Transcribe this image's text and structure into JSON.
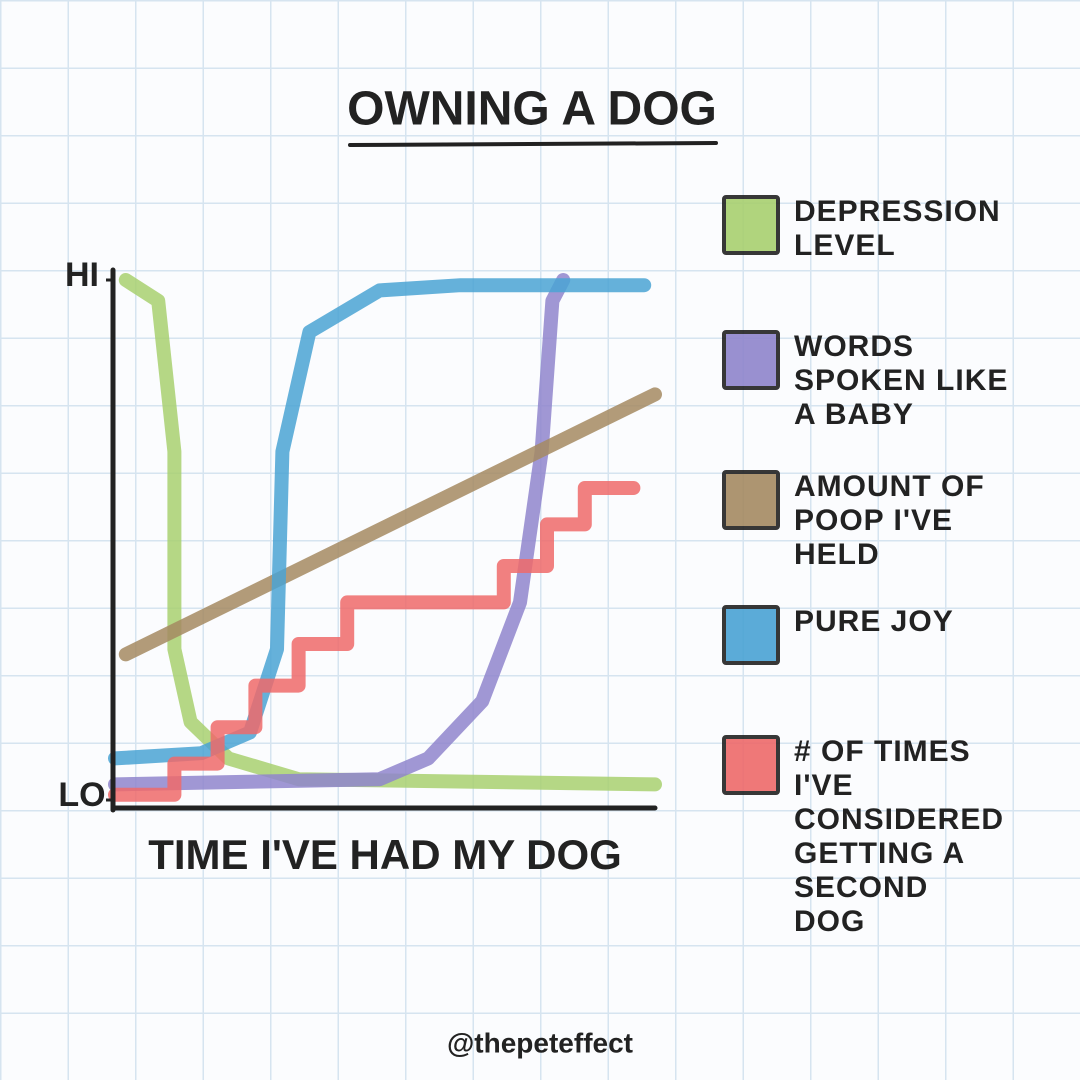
{
  "chart_data": {
    "type": "line",
    "title": "OWNING A DOG",
    "xlabel": "TIME I'VE HAD MY DOG",
    "credit": "@thepeteffect",
    "xlim": [
      0,
      100
    ],
    "ylim": [
      0,
      100
    ],
    "yticks": [
      {
        "value": 0,
        "label": "LO"
      },
      {
        "value": 100,
        "label": "HI"
      }
    ],
    "legend": "right",
    "series": [
      {
        "name": "DEPRESSION LEVEL",
        "color": "#a8d070",
        "x": [
          2,
          8,
          11,
          11,
          14,
          21,
          34,
          100
        ],
        "values": [
          100,
          96,
          67,
          29,
          15,
          8,
          4,
          3
        ]
      },
      {
        "name": "WORDS SPOKEN LIKE A BABY",
        "color": "#8f85cc",
        "x": [
          0,
          49,
          58,
          68,
          75,
          79,
          81,
          83
        ],
        "values": [
          3,
          4,
          8,
          19,
          38,
          67,
          96,
          100
        ]
      },
      {
        "name": "AMOUNT OF POOP I'VE HELD",
        "color": "#a58a62",
        "x": [
          2,
          100
        ],
        "values": [
          28,
          78
        ]
      },
      {
        "name": "PURE JOY",
        "color": "#4aa3d4",
        "x": [
          0,
          16,
          25,
          30,
          31,
          36,
          49,
          64,
          98
        ],
        "values": [
          8,
          9,
          13,
          29,
          67,
          90,
          98,
          99,
          99
        ]
      },
      {
        "name": "# OF TIMES I'VE CONSIDERED GETTING A SECOND DOG",
        "color": "#ee6a6a",
        "x": [
          0,
          11,
          11,
          19,
          19,
          26,
          26,
          34,
          34,
          43,
          43,
          72,
          72,
          80,
          80,
          87,
          87,
          96
        ],
        "values": [
          1,
          1,
          7,
          7,
          14,
          14,
          22,
          22,
          30,
          30,
          38,
          38,
          45,
          45,
          53,
          53,
          60,
          60
        ]
      }
    ]
  }
}
